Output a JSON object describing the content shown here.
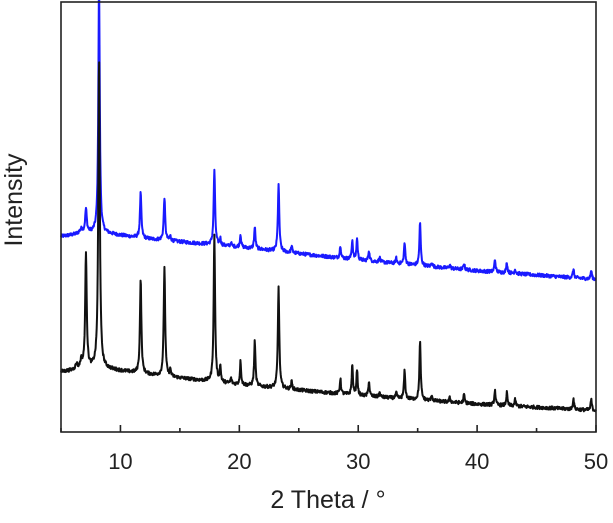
{
  "chart_data": {
    "type": "line",
    "xlabel": "2 Theta / °",
    "ylabel": "Intensity",
    "xlim": [
      5,
      50
    ],
    "ylim": [
      0,
      100
    ],
    "x_ticks": [
      10,
      20,
      30,
      40,
      50
    ],
    "y_tick_labels": false,
    "grid": false,
    "legend": "none",
    "series": [
      {
        "color": "#1a1aff",
        "baseline": {
          "x": [
            5,
            8,
            12,
            20,
            30,
            40,
            50
          ],
          "y": [
            45.5,
            46.5,
            45.0,
            43.0,
            40.0,
            37.5,
            35.5
          ]
        },
        "peaks": [
          {
            "x": 6.7,
            "h": 1.0,
            "w": 0.35
          },
          {
            "x": 7.1,
            "h": 5.5,
            "w": 0.16
          },
          {
            "x": 8.2,
            "h": 58.0,
            "w": 0.14
          },
          {
            "x": 11.7,
            "h": 10.5,
            "w": 0.14
          },
          {
            "x": 13.7,
            "h": 10.0,
            "w": 0.14
          },
          {
            "x": 14.2,
            "h": 1.0,
            "w": 0.12
          },
          {
            "x": 17.9,
            "h": 17.5,
            "w": 0.14
          },
          {
            "x": 18.4,
            "h": 1.5,
            "w": 0.12
          },
          {
            "x": 19.3,
            "h": 0.8,
            "w": 0.12
          },
          {
            "x": 20.1,
            "h": 3.0,
            "w": 0.12
          },
          {
            "x": 21.3,
            "h": 5.0,
            "w": 0.13
          },
          {
            "x": 23.3,
            "h": 15.5,
            "w": 0.14
          },
          {
            "x": 24.4,
            "h": 1.5,
            "w": 0.12
          },
          {
            "x": 28.5,
            "h": 3.0,
            "w": 0.12
          },
          {
            "x": 29.5,
            "h": 4.5,
            "w": 0.12
          },
          {
            "x": 29.9,
            "h": 5.0,
            "w": 0.12
          },
          {
            "x": 30.9,
            "h": 2.5,
            "w": 0.12
          },
          {
            "x": 31.8,
            "h": 1.0,
            "w": 0.12
          },
          {
            "x": 33.2,
            "h": 1.2,
            "w": 0.12
          },
          {
            "x": 33.9,
            "h": 5.0,
            "w": 0.13
          },
          {
            "x": 35.2,
            "h": 10.0,
            "w": 0.13
          },
          {
            "x": 36.2,
            "h": 1.0,
            "w": 0.12
          },
          {
            "x": 37.7,
            "h": 0.8,
            "w": 0.12
          },
          {
            "x": 38.9,
            "h": 1.5,
            "w": 0.12
          },
          {
            "x": 41.5,
            "h": 3.0,
            "w": 0.12
          },
          {
            "x": 42.5,
            "h": 2.5,
            "w": 0.12
          },
          {
            "x": 43.2,
            "h": 1.0,
            "w": 0.12
          },
          {
            "x": 48.1,
            "h": 2.0,
            "w": 0.12
          },
          {
            "x": 49.6,
            "h": 2.0,
            "w": 0.12
          }
        ]
      },
      {
        "color": "#111111",
        "baseline": {
          "x": [
            5,
            8,
            12,
            20,
            30,
            40,
            50
          ],
          "y": [
            14.0,
            15.0,
            13.5,
            11.0,
            8.5,
            6.5,
            5.0
          ]
        },
        "peaks": [
          {
            "x": 6.3,
            "h": 1.2,
            "w": 0.2
          },
          {
            "x": 6.7,
            "h": 1.8,
            "w": 0.2
          },
          {
            "x": 7.1,
            "h": 27.0,
            "w": 0.15
          },
          {
            "x": 8.2,
            "h": 72.0,
            "w": 0.15
          },
          {
            "x": 11.7,
            "h": 22.0,
            "w": 0.14
          },
          {
            "x": 13.7,
            "h": 25.5,
            "w": 0.14
          },
          {
            "x": 14.2,
            "h": 1.5,
            "w": 0.12
          },
          {
            "x": 17.9,
            "h": 34.0,
            "w": 0.14
          },
          {
            "x": 18.4,
            "h": 3.5,
            "w": 0.12
          },
          {
            "x": 19.3,
            "h": 1.2,
            "w": 0.12
          },
          {
            "x": 20.1,
            "h": 5.5,
            "w": 0.12
          },
          {
            "x": 21.3,
            "h": 10.5,
            "w": 0.13
          },
          {
            "x": 23.3,
            "h": 23.5,
            "w": 0.14
          },
          {
            "x": 24.4,
            "h": 1.8,
            "w": 0.12
          },
          {
            "x": 28.5,
            "h": 3.5,
            "w": 0.12
          },
          {
            "x": 29.5,
            "h": 7.0,
            "w": 0.12
          },
          {
            "x": 29.9,
            "h": 6.0,
            "w": 0.12
          },
          {
            "x": 30.9,
            "h": 3.5,
            "w": 0.12
          },
          {
            "x": 31.8,
            "h": 1.0,
            "w": 0.12
          },
          {
            "x": 33.2,
            "h": 1.2,
            "w": 0.12
          },
          {
            "x": 33.9,
            "h": 6.5,
            "w": 0.13
          },
          {
            "x": 35.2,
            "h": 13.5,
            "w": 0.13
          },
          {
            "x": 36.2,
            "h": 1.2,
            "w": 0.12
          },
          {
            "x": 37.7,
            "h": 1.0,
            "w": 0.12
          },
          {
            "x": 38.9,
            "h": 2.0,
            "w": 0.12
          },
          {
            "x": 41.5,
            "h": 3.5,
            "w": 0.12
          },
          {
            "x": 42.5,
            "h": 3.0,
            "w": 0.12
          },
          {
            "x": 43.2,
            "h": 1.5,
            "w": 0.12
          },
          {
            "x": 48.1,
            "h": 2.5,
            "w": 0.12
          },
          {
            "x": 49.6,
            "h": 2.5,
            "w": 0.12
          }
        ]
      }
    ]
  }
}
